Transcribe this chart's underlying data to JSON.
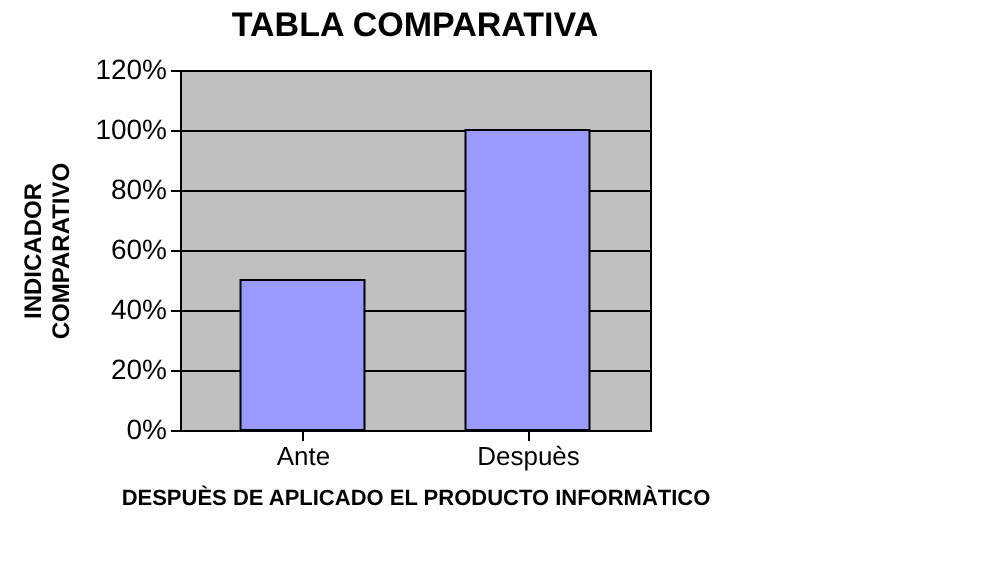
{
  "chart_data": {
    "type": "bar",
    "title": "TABLA COMPARATIVA",
    "xlabel": "DESPUÈS DE APLICADO EL PRODUCTO INFORMÀTICO",
    "ylabel": "INDICADOR COMPARATIVO",
    "categories": [
      "Ante",
      "Despuès"
    ],
    "values": [
      50,
      100
    ],
    "color": "#9999ff",
    "ylim": [
      0,
      120
    ],
    "yticks": [
      {
        "value": 0,
        "label": "0%"
      },
      {
        "value": 20,
        "label": "20%"
      },
      {
        "value": 40,
        "label": "40%"
      },
      {
        "value": 60,
        "label": "60%"
      },
      {
        "value": 80,
        "label": "80%"
      },
      {
        "value": 100,
        "label": "100%"
      },
      {
        "value": 120,
        "label": "120%"
      }
    ],
    "grid": "y"
  }
}
